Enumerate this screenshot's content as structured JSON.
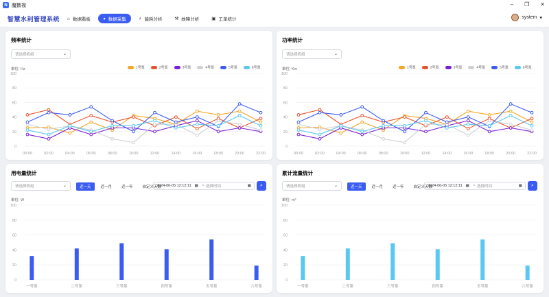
{
  "window": {
    "title": "魔数视",
    "logo": "N"
  },
  "nav": {
    "brand": "智慧水利管理系统",
    "items": [
      {
        "label": "数据看板",
        "icon": "⌂",
        "active": false
      },
      {
        "label": "数据采集",
        "icon": "◕",
        "active": true
      },
      {
        "label": "能耗分析",
        "icon": "⚡",
        "active": false
      },
      {
        "label": "故障分析",
        "icon": "⚒",
        "active": false
      },
      {
        "label": "工单统计",
        "icon": "▣",
        "active": false
      }
    ],
    "user": "system"
  },
  "freq": {
    "title": "频率统计",
    "select_placeholder": "请选择机组",
    "unit": "单位:  Hz"
  },
  "power": {
    "title": "功率统计",
    "select_placeholder": "请选择机组",
    "unit": "单位:  Kw"
  },
  "elec": {
    "title": "用电量统计",
    "select_placeholder": "请选择机组",
    "unit": "单位:  W",
    "tabs": [
      "近一天",
      "近一月",
      "近一年",
      "自定义天数"
    ],
    "date_start": "2024-06-05 12:12:11",
    "date_sep": "~",
    "date_end_placeholder": "选择时间"
  },
  "flow": {
    "title": "累计流量统计",
    "select_placeholder": "请选择机组",
    "unit": "单位:  m³",
    "tabs": [
      "近一天",
      "近一月",
      "近一年",
      "自定义天数"
    ],
    "date_start": "2024-06-05 12:12:11",
    "date_sep": "~",
    "date_end_placeholder": "选择时间"
  },
  "chart_data": [
    {
      "type": "line",
      "name": "freq",
      "x": [
        "00:00",
        "02:00",
        "04:00",
        "06:00",
        "08:00",
        "10:00",
        "12:00",
        "14:00",
        "16:00",
        "18:00",
        "20:00",
        "22:00"
      ],
      "ylim": [
        0,
        100
      ],
      "yticks": [
        0,
        20,
        40,
        60,
        80,
        100
      ],
      "series": [
        {
          "name": "1号泵",
          "color": "#f5a623",
          "values": [
            25,
            26,
            18,
            33,
            22,
            42,
            38,
            30,
            48,
            43,
            48,
            33
          ]
        },
        {
          "name": "2号泵",
          "color": "#e8542a",
          "values": [
            43,
            50,
            30,
            42,
            33,
            40,
            28,
            40,
            24,
            38,
            25,
            38
          ]
        },
        {
          "name": "3号泵",
          "color": "#7a1fd6",
          "values": [
            16,
            10,
            25,
            16,
            25,
            25,
            20,
            28,
            35,
            20,
            25,
            20
          ]
        },
        {
          "name": "4号泵",
          "color": "#d0d0d0",
          "values": [
            30,
            23,
            28,
            22,
            10,
            5,
            30,
            30,
            15,
            35,
            30,
            22
          ]
        },
        {
          "name": "5号泵",
          "color": "#3b5cf0",
          "values": [
            33,
            46,
            43,
            54,
            35,
            20,
            46,
            33,
            40,
            27,
            58,
            46
          ]
        },
        {
          "name": "6号泵",
          "color": "#5ac8f0",
          "values": [
            22,
            16,
            28,
            20,
            28,
            28,
            35,
            25,
            30,
            28,
            42,
            28
          ]
        }
      ]
    },
    {
      "type": "line",
      "name": "power",
      "x": [
        "00:00",
        "02:00",
        "04:00",
        "06:00",
        "08:00",
        "10:00",
        "12:00",
        "14:00",
        "16:00",
        "18:00",
        "20:00",
        "22:00"
      ],
      "ylim": [
        0,
        100
      ],
      "yticks": [
        0,
        20,
        40,
        60,
        80,
        100
      ],
      "series": [
        {
          "name": "1号泵",
          "color": "#f5a623",
          "values": [
            25,
            26,
            18,
            33,
            22,
            42,
            38,
            30,
            48,
            43,
            48,
            33
          ]
        },
        {
          "name": "2号泵",
          "color": "#e8542a",
          "values": [
            43,
            50,
            30,
            42,
            33,
            40,
            28,
            40,
            24,
            38,
            25,
            38
          ]
        },
        {
          "name": "3号泵",
          "color": "#7a1fd6",
          "values": [
            16,
            10,
            25,
            16,
            25,
            25,
            20,
            28,
            35,
            20,
            25,
            20
          ]
        },
        {
          "name": "4号泵",
          "color": "#d0d0d0",
          "values": [
            30,
            23,
            28,
            22,
            10,
            5,
            30,
            30,
            15,
            35,
            30,
            22
          ]
        },
        {
          "name": "5号泵",
          "color": "#3b5cf0",
          "values": [
            33,
            46,
            43,
            54,
            35,
            20,
            46,
            33,
            40,
            27,
            58,
            46
          ]
        },
        {
          "name": "6号泵",
          "color": "#5ac8f0",
          "values": [
            22,
            16,
            28,
            20,
            28,
            28,
            35,
            25,
            30,
            28,
            42,
            28
          ]
        }
      ]
    },
    {
      "type": "bar",
      "name": "elec",
      "categories": [
        "一号泵",
        "二号泵",
        "三号泵",
        "四号泵",
        "五号泵",
        "六号泵"
      ],
      "values": [
        32,
        42,
        49,
        41,
        54,
        19
      ],
      "color": "#3b5cf0",
      "ylim": [
        0,
        100
      ],
      "yticks": [
        0,
        20,
        40,
        60,
        80,
        100
      ]
    },
    {
      "type": "bar",
      "name": "flow",
      "categories": [
        "一号泵",
        "二号泵",
        "三号泵",
        "四号泵",
        "五号泵",
        "六号泵"
      ],
      "values": [
        32,
        42,
        49,
        41,
        54,
        19
      ],
      "color": "#5ac8f0",
      "ylim": [
        0,
        100
      ],
      "yticks": [
        0,
        20,
        40,
        60,
        80,
        100
      ]
    }
  ]
}
